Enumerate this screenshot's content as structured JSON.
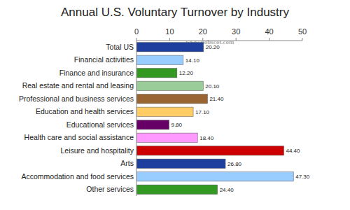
{
  "chart_data": {
    "type": "bar",
    "title": "Annual U.S. Voluntary Turnover by Industry",
    "annotation": "www.nobscot.com",
    "orientation": "horizontal",
    "categories": [
      "Total US",
      "Financial activities",
      "Finance and insurance",
      "Real estate and rental and leasing",
      "Professional and business services",
      "Education and health services",
      "Educational services",
      "Health care and social assistance",
      "Leisure and hospitality",
      "Arts",
      "Accommodation and food services",
      "Other services"
    ],
    "values": [
      20.2,
      14.1,
      12.2,
      20.1,
      21.4,
      17.1,
      9.8,
      18.4,
      44.4,
      26.8,
      47.3,
      24.4
    ],
    "value_labels": [
      "20.20",
      "14.10",
      "12.20",
      "20.10",
      "21.40",
      "17.10",
      "9.80",
      "18.40",
      "44.40",
      "26.80",
      "47.30",
      "24.40"
    ],
    "colors": [
      "#1f3f9f",
      "#99ccff",
      "#339922",
      "#99cc99",
      "#996633",
      "#ffcc66",
      "#660066",
      "#ff99ff",
      "#cc0000",
      "#1f3f9f",
      "#99ccff",
      "#339922"
    ],
    "xlim": [
      0,
      50
    ],
    "xticks": [
      0,
      10,
      20,
      30,
      40,
      50
    ],
    "grid": false,
    "data_labels": true
  }
}
